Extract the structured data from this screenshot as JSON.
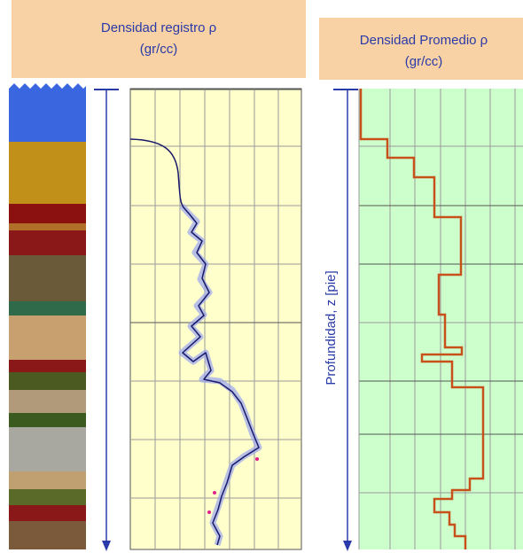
{
  "left_header": {
    "title": "Densidad registro ρ",
    "unit": "(gr/cc)"
  },
  "right_header": {
    "title": "Densidad Promedio ρ",
    "unit": "(gr/cc)"
  },
  "depth_label": "Profundidad, z [pie]"
}
